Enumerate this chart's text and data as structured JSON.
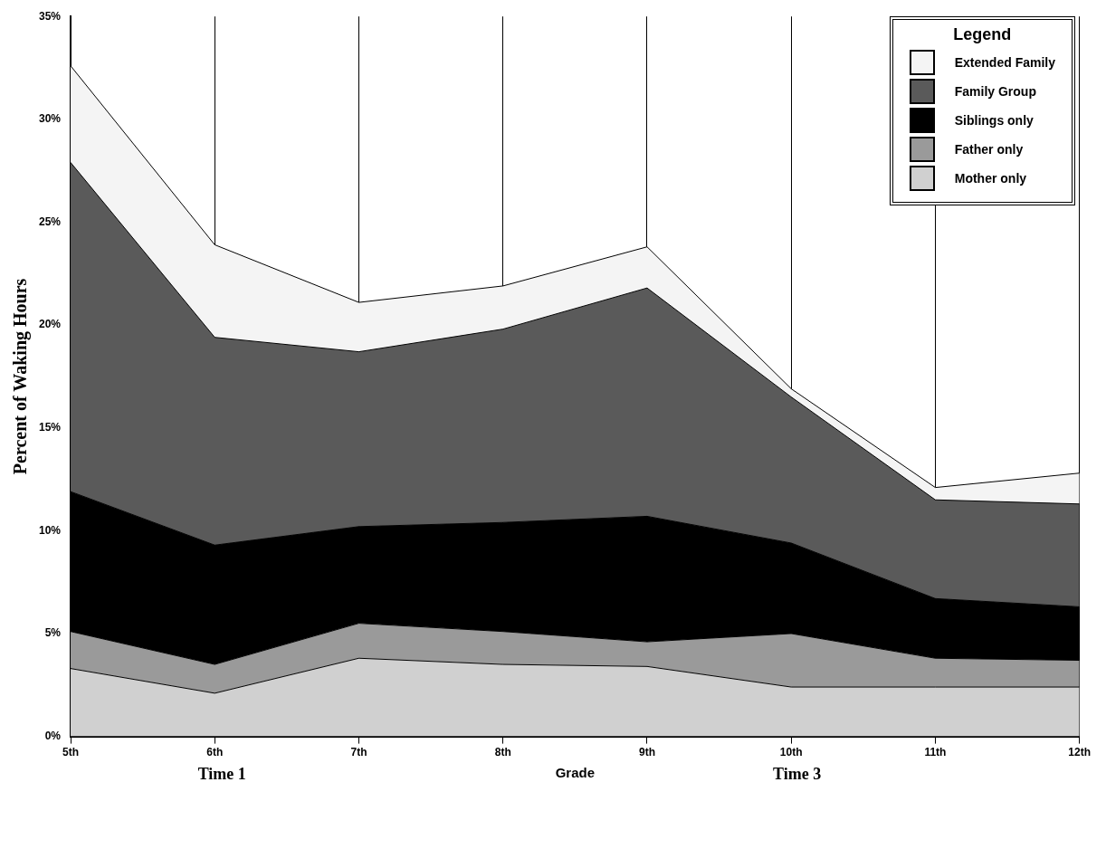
{
  "chart_data": {
    "type": "area",
    "stacked": true,
    "xlabel": "Grade",
    "ylabel": "Percent of Waking Hours",
    "legend_title": "Legend",
    "legend": "top right",
    "grid": "x",
    "categories": [
      "5th",
      "6th",
      "7th",
      "8th",
      "9th",
      "10th",
      "11th",
      "12th"
    ],
    "ylim": [
      0,
      35
    ],
    "yticks": [
      {
        "value": 0,
        "label": "0%"
      },
      {
        "value": 5,
        "label": "5%"
      },
      {
        "value": 10,
        "label": "10%"
      },
      {
        "value": 15,
        "label": "15%"
      },
      {
        "value": 20,
        "label": "20%"
      },
      {
        "value": 25,
        "label": "25%"
      },
      {
        "value": 30,
        "label": "30%"
      },
      {
        "value": 35,
        "label": "35%"
      }
    ],
    "series": [
      {
        "name": "Mother only",
        "color": "#d0d0d0",
        "values": [
          3.3,
          2.1,
          3.8,
          3.5,
          3.4,
          2.4,
          2.4,
          2.4
        ]
      },
      {
        "name": "Father only",
        "color": "#9a9a9a",
        "values": [
          1.8,
          1.4,
          1.7,
          1.6,
          1.2,
          2.6,
          1.4,
          1.3
        ]
      },
      {
        "name": "Siblings only",
        "color": "#000000",
        "values": [
          6.8,
          5.8,
          4.7,
          5.3,
          6.1,
          4.4,
          2.9,
          2.6
        ]
      },
      {
        "name": "Family Group",
        "color": "#5a5a5a",
        "values": [
          16.0,
          10.1,
          8.5,
          9.4,
          11.1,
          7.1,
          4.8,
          5.0
        ]
      },
      {
        "name": "Extended Family",
        "color": "#f4f4f4",
        "values": [
          4.7,
          4.5,
          2.4,
          2.1,
          2.0,
          0.4,
          0.6,
          1.5
        ]
      }
    ],
    "annotations": [
      "Time 1",
      "Time 3"
    ]
  }
}
